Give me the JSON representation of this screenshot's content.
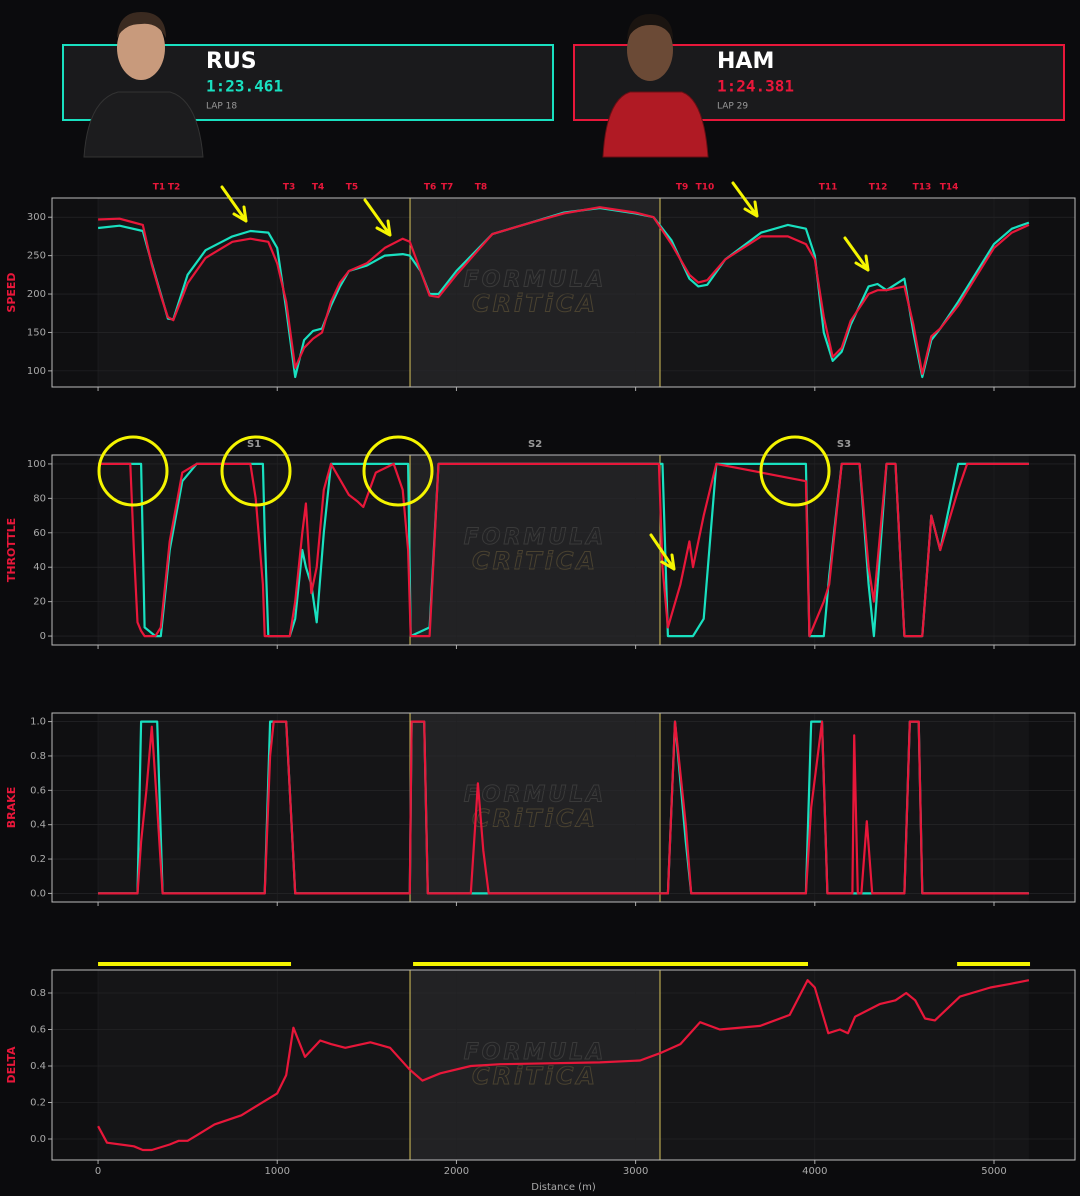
{
  "drivers": [
    {
      "code": "RUS",
      "time": "1:23.461",
      "lap": "LAP 18",
      "color": "#19e0c0"
    },
    {
      "code": "HAM",
      "time": "1:24.381",
      "lap": "LAP 29",
      "color": "#e8173a"
    }
  ],
  "sectors": {
    "boundaries": [
      1741,
      3136
    ]
  },
  "watermark": [
    "FORMULA",
    "CRiTiCA"
  ],
  "chart_data": [
    {
      "type": "line",
      "ylabel": "SPEED",
      "xlim": [
        -257,
        5452
      ],
      "xticks": [
        0,
        1000,
        2000,
        3000,
        4000,
        5000
      ],
      "ylim": [
        79,
        325
      ],
      "yticks": [
        100,
        150,
        200,
        250,
        300
      ],
      "annotations": [
        {
          "text": "T1",
          "x": 340
        },
        {
          "text": "T2",
          "x": 424
        },
        {
          "text": "T3",
          "x": 1066
        },
        {
          "text": "T4",
          "x": 1228
        },
        {
          "text": "T5",
          "x": 1417
        },
        {
          "text": "T6",
          "x": 1853
        },
        {
          "text": "T7",
          "x": 1948
        },
        {
          "text": "T8",
          "x": 2137
        },
        {
          "text": "T9",
          "x": 3259
        },
        {
          "text": "T10",
          "x": 3387
        },
        {
          "text": "T11",
          "x": 4074
        },
        {
          "text": "T12",
          "x": 4353
        },
        {
          "text": "T13",
          "x": 4598
        },
        {
          "text": "T14",
          "x": 4749
        }
      ],
      "x": [
        0,
        120,
        250,
        300,
        350,
        390,
        420,
        500,
        600,
        750,
        850,
        950,
        1000,
        1050,
        1100,
        1150,
        1200,
        1250,
        1300,
        1350,
        1400,
        1500,
        1600,
        1700,
        1740,
        1800,
        1850,
        1900,
        2000,
        2200,
        2400,
        2600,
        2800,
        3000,
        3100,
        3200,
        3300,
        3350,
        3400,
        3500,
        3700,
        3850,
        3950,
        4000,
        4050,
        4100,
        4150,
        4200,
        4300,
        4350,
        4400,
        4500,
        4550,
        4600,
        4650,
        4700,
        4800,
        5000,
        5100,
        5195
      ],
      "series": [
        {
          "color": "#19e0c0",
          "values": [
            286,
            289,
            282,
            240,
            200,
            168,
            167,
            225,
            257,
            275,
            282,
            280,
            260,
            180,
            92,
            140,
            152,
            155,
            185,
            210,
            230,
            237,
            250,
            252,
            250,
            230,
            200,
            200,
            230,
            278,
            292,
            306,
            312,
            305,
            300,
            270,
            220,
            210,
            212,
            245,
            280,
            290,
            285,
            250,
            150,
            113,
            125,
            160,
            210,
            213,
            205,
            220,
            150,
            92,
            140,
            155,
            190,
            265,
            285,
            293
          ]
        },
        {
          "color": "#e8173a",
          "values": [
            297,
            298,
            290,
            238,
            198,
            170,
            166,
            214,
            247,
            268,
            272,
            268,
            240,
            190,
            104,
            130,
            142,
            150,
            190,
            215,
            230,
            240,
            260,
            272,
            268,
            230,
            198,
            196,
            225,
            278,
            292,
            305,
            313,
            306,
            300,
            265,
            225,
            215,
            218,
            245,
            275,
            275,
            265,
            245,
            170,
            118,
            130,
            165,
            200,
            205,
            205,
            210,
            160,
            96,
            145,
            155,
            185,
            260,
            280,
            290
          ]
        }
      ]
    },
    {
      "type": "line",
      "ylabel": "THROTTLE",
      "xlim": [
        -257,
        5452
      ],
      "xticks": [
        0,
        1000,
        2000,
        3000,
        4000,
        5000
      ],
      "ylim": [
        -5.2,
        105.2
      ],
      "yticks": [
        0,
        20,
        40,
        60,
        80,
        100
      ],
      "annotations": [
        {
          "text": "S1",
          "x": 871
        },
        {
          "text": "S2",
          "x": 2439
        },
        {
          "text": "S3",
          "x": 4163
        }
      ],
      "x": [
        0,
        180,
        200,
        220,
        240,
        260,
        320,
        350,
        400,
        470,
        550,
        850,
        880,
        920,
        930,
        950,
        1070,
        1100,
        1140,
        1160,
        1190,
        1220,
        1260,
        1300,
        1400,
        1450,
        1480,
        1550,
        1650,
        1700,
        1730,
        1745,
        1850,
        1900,
        3130,
        3150,
        3180,
        3250,
        3300,
        3320,
        3380,
        3450,
        3950,
        3970,
        4050,
        4080,
        4150,
        4250,
        4300,
        4330,
        4400,
        4450,
        4500,
        4600,
        4650,
        4700,
        4800,
        4850,
        5195
      ],
      "series": [
        {
          "color": "#19e0c0",
          "values": [
            100,
            100,
            100,
            100,
            100,
            5,
            0,
            0,
            50,
            90,
            100,
            100,
            100,
            100,
            60,
            0,
            0,
            10,
            50,
            40,
            30,
            8,
            60,
            100,
            100,
            100,
            100,
            100,
            100,
            100,
            100,
            0,
            5,
            100,
            100,
            100,
            0,
            0,
            0,
            0,
            10,
            100,
            100,
            0,
            0,
            35,
            100,
            100,
            30,
            0,
            100,
            100,
            0,
            0,
            70,
            50,
            100,
            100,
            100
          ]
        },
        {
          "color": "#e8173a",
          "values": [
            100,
            100,
            50,
            8,
            3,
            0,
            0,
            5,
            55,
            95,
            100,
            100,
            80,
            30,
            0,
            0,
            0,
            20,
            60,
            77,
            25,
            40,
            85,
            100,
            82,
            78,
            75,
            95,
            100,
            85,
            50,
            0,
            0,
            100,
            100,
            40,
            5,
            30,
            55,
            40,
            70,
            100,
            90,
            0,
            20,
            30,
            100,
            100,
            40,
            20,
            100,
            100,
            0,
            0,
            70,
            50,
            85,
            100,
            100
          ]
        }
      ]
    },
    {
      "type": "line",
      "ylabel": "BRAKE",
      "xlim": [
        -257,
        5452
      ],
      "xticks": [
        0,
        1000,
        2000,
        3000,
        4000,
        5000
      ],
      "ylim": [
        -0.05,
        1.05
      ],
      "yticks": [
        {
          "value": 0,
          "label": "0.0"
        },
        0.2,
        0.4,
        0.6,
        0.8,
        {
          "value": 1,
          "label": "1.0"
        }
      ],
      "x": [
        0,
        220,
        240,
        270,
        300,
        330,
        360,
        930,
        960,
        980,
        1050,
        1100,
        1740,
        1750,
        1820,
        1840,
        2080,
        2120,
        2150,
        2180,
        3180,
        3220,
        3280,
        3310,
        3950,
        3980,
        4040,
        4070,
        4210,
        4220,
        4240,
        4260,
        4290,
        4320,
        4500,
        4530,
        4580,
        4600,
        5195
      ],
      "series": [
        {
          "color": "#19e0c0",
          "values": [
            0,
            0,
            1,
            1,
            1,
            1,
            0,
            0,
            1,
            1,
            1,
            0,
            0,
            1,
            1,
            0,
            0,
            0,
            0,
            0,
            0,
            1,
            0.3,
            0,
            0,
            1,
            1,
            0,
            0,
            0,
            0,
            0,
            0,
            0,
            0,
            1,
            1,
            0,
            0
          ]
        },
        {
          "color": "#e8173a",
          "values": [
            0,
            0,
            0.3,
            0.6,
            0.97,
            0.5,
            0,
            0,
            0.8,
            1,
            1,
            0,
            0,
            1,
            1,
            0,
            0,
            0.64,
            0.25,
            0,
            0,
            1,
            0.4,
            0,
            0,
            0.5,
            1,
            0,
            0,
            0.92,
            0,
            0,
            0.42,
            0,
            0,
            1,
            1,
            0,
            0
          ]
        }
      ]
    },
    {
      "type": "line",
      "ylabel": "DELTA",
      "xlabel": "Distance (m)",
      "xlim": [
        -257,
        5452
      ],
      "xticks": [
        0,
        1000,
        2000,
        3000,
        4000,
        5000
      ],
      "ylim": [
        -0.115,
        0.926
      ],
      "yticks": [
        {
          "value": 0,
          "label": "0.0"
        },
        0.2,
        0.4,
        0.6,
        0.8
      ],
      "highlight_color": "#f5f500",
      "highlights": [
        {
          "start": 0,
          "end": 1077
        },
        {
          "start": 1758,
          "end": 3962
        },
        {
          "start": 4794,
          "end": 5201
        }
      ],
      "x": [
        0,
        50,
        200,
        250,
        300,
        400,
        450,
        500,
        550,
        650,
        800,
        900,
        1000,
        1050,
        1090,
        1155,
        1240,
        1300,
        1380,
        1520,
        1630,
        1740,
        1810,
        1910,
        2080,
        2245,
        2800,
        3025,
        3136,
        3250,
        3360,
        3470,
        3695,
        3860,
        3960,
        4000,
        4075,
        4140,
        4185,
        4225,
        4365,
        4450,
        4510,
        4560,
        4615,
        4670,
        4810,
        4980,
        5090,
        5195
      ],
      "series": [
        {
          "color": "#e8173a",
          "values": [
            0.07,
            -0.02,
            -0.04,
            -0.06,
            -0.06,
            -0.03,
            -0.01,
            -0.01,
            0.02,
            0.08,
            0.13,
            0.19,
            0.25,
            0.35,
            0.61,
            0.45,
            0.54,
            0.52,
            0.5,
            0.53,
            0.5,
            0.38,
            0.32,
            0.36,
            0.4,
            0.41,
            0.42,
            0.43,
            0.47,
            0.52,
            0.64,
            0.6,
            0.62,
            0.68,
            0.87,
            0.83,
            0.58,
            0.6,
            0.58,
            0.67,
            0.74,
            0.76,
            0.8,
            0.76,
            0.66,
            0.65,
            0.78,
            0.83,
            0.85,
            0.87
          ]
        }
      ]
    }
  ]
}
